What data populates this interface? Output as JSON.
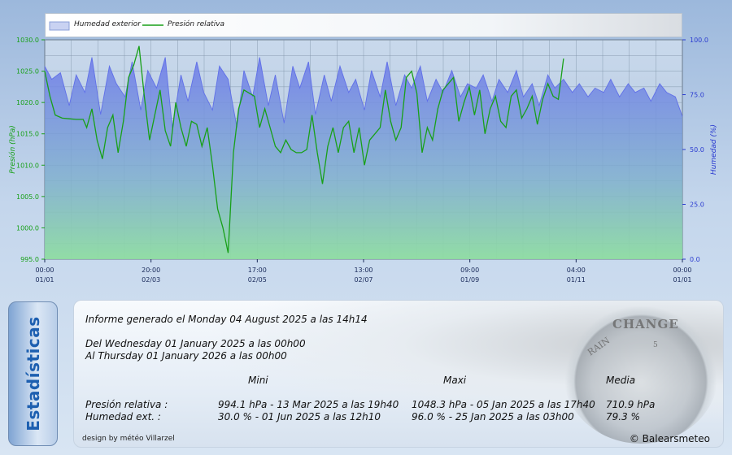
{
  "chart_data": {
    "type": "line",
    "x_ticks": [
      {
        "time": "00:00",
        "date": "01/01"
      },
      {
        "time": "20:00",
        "date": "02/03"
      },
      {
        "time": "17:00",
        "date": "02/05"
      },
      {
        "time": "13:00",
        "date": "02/07"
      },
      {
        "time": "09:00",
        "date": "01/09"
      },
      {
        "time": "04:00",
        "date": "01/11"
      },
      {
        "time": "00:00",
        "date": "01/01"
      }
    ],
    "y_left": {
      "label": "Presión (hPa)",
      "ticks": [
        "1030.0",
        "1025.0",
        "1020.0",
        "1015.0",
        "1010.0",
        "1005.0",
        "1000.0",
        "995.0"
      ],
      "range": [
        995,
        1030
      ]
    },
    "y_right": {
      "label": "Humedad (%)",
      "ticks": [
        "100.0",
        "75.0",
        "50.0",
        "25.0",
        "0.0"
      ],
      "range": [
        0,
        100
      ]
    },
    "x_range": [
      0,
      365
    ],
    "grid": true,
    "series": [
      {
        "name": "Humedad exterior",
        "axis": "right",
        "style": "area",
        "color": "#6070e8",
        "x": [
          0,
          4,
          9,
          14,
          18,
          23,
          27,
          32,
          37,
          41,
          46,
          50,
          55,
          59,
          64,
          69,
          73,
          78,
          82,
          87,
          91,
          96,
          100,
          105,
          110,
          114,
          119,
          123,
          128,
          132,
          137,
          142,
          146,
          151,
          155,
          160,
          164,
          169,
          174,
          178,
          183,
          187,
          192,
          196,
          201,
          206,
          210,
          215,
          219,
          224,
          228,
          233,
          238,
          242,
          247,
          251,
          256,
          260,
          265,
          270,
          274,
          279,
          283,
          288,
          292,
          297,
          302,
          306,
          311,
          315,
          320,
          324,
          329,
          334,
          338,
          343,
          347,
          352,
          356,
          361,
          365
        ],
        "values": [
          88,
          82,
          85,
          70,
          84,
          76,
          92,
          66,
          88,
          80,
          74,
          90,
          68,
          86,
          78,
          92,
          60,
          84,
          72,
          90,
          76,
          68,
          88,
          82,
          60,
          86,
          74,
          92,
          70,
          84,
          62,
          88,
          78,
          90,
          66,
          84,
          72,
          88,
          76,
          82,
          68,
          86,
          74,
          90,
          70,
          84,
          78,
          88,
          72,
          82,
          76,
          86,
          74,
          80,
          78,
          84,
          72,
          82,
          76,
          86,
          74,
          80,
          70,
          84,
          78,
          82,
          76,
          80,
          74,
          78,
          76,
          82,
          74,
          80,
          76,
          78,
          72,
          80,
          76,
          74,
          65
        ]
      },
      {
        "name": "Presión relativa",
        "axis": "left",
        "style": "line",
        "color": "#18a018",
        "x": [
          0,
          3,
          6,
          10,
          14,
          18,
          22,
          24,
          27,
          30,
          33,
          36,
          39,
          42,
          45,
          48,
          51,
          54,
          57,
          60,
          63,
          66,
          69,
          72,
          75,
          78,
          81,
          84,
          87,
          90,
          93,
          96,
          99,
          102,
          105,
          108,
          111,
          114,
          117,
          120,
          123,
          126,
          129,
          132,
          135,
          138,
          141,
          144,
          147,
          150,
          153,
          156,
          159,
          162,
          165,
          168,
          171,
          174,
          177,
          180,
          183,
          186,
          189,
          192,
          195,
          198,
          201,
          204,
          207,
          210,
          213,
          216,
          219,
          222,
          225,
          228,
          231,
          234,
          237,
          240,
          243,
          246,
          249,
          252,
          255,
          258,
          261,
          264,
          267,
          270,
          273,
          276,
          279,
          282,
          285,
          288,
          291,
          294,
          297
        ],
        "values": [
          1025.0,
          1021.0,
          1018.0,
          1017.5,
          1017.4,
          1017.3,
          1017.3,
          1016.0,
          1019.0,
          1014.0,
          1011.0,
          1016.0,
          1018.0,
          1012.0,
          1017.0,
          1024.0,
          1026.0,
          1029.0,
          1021.0,
          1014.0,
          1018.0,
          1022.0,
          1015.5,
          1013.0,
          1020.0,
          1016.0,
          1013.0,
          1017.0,
          1016.5,
          1013.0,
          1016.0,
          1010.0,
          1003.0,
          1000.0,
          996.0,
          1012.0,
          1019.0,
          1022.0,
          1021.5,
          1021.0,
          1016.0,
          1019.0,
          1016.0,
          1013.0,
          1012.0,
          1014.0,
          1012.5,
          1012.0,
          1012.0,
          1012.5,
          1018.0,
          1012.0,
          1007.0,
          1013.0,
          1016.0,
          1012.0,
          1016.0,
          1017.0,
          1012.0,
          1016.0,
          1010.0,
          1014.0,
          1015.0,
          1016.0,
          1022.0,
          1017.0,
          1014.0,
          1016.0,
          1024.0,
          1025.0,
          1021.5,
          1012.0,
          1016.0,
          1014.0,
          1019.0,
          1022.0,
          1023.0,
          1024.0,
          1017.0,
          1020.0,
          1022.5,
          1018.0,
          1022.0,
          1015.0,
          1019.0,
          1021.0,
          1017.0,
          1016.0,
          1021.0,
          1022.0,
          1017.5,
          1019.0,
          1021.0,
          1016.5,
          1020.5,
          1023.0,
          1021.0,
          1020.5,
          1027.0
        ]
      }
    ]
  },
  "legend": {
    "humidity": "Humedad exterior",
    "pressure": "Presión relativa"
  },
  "stats": {
    "tab_label": "Estadísticas",
    "report": "Informe generado el Monday 04 August 2025 a las 14h14",
    "from": "Del Wednesday 01 January 2025 a las 00h00",
    "to": "Al Thursday 01 January 2026 a las 00h00",
    "col_min": "Mini",
    "col_max": "Maxi",
    "col_avg": "Media",
    "rows": [
      {
        "label": "Presión relativa :",
        "min": "994.1 hPa - 13 Mar 2025 a las 19h40",
        "max": "1048.3 hPa - 05 Jan 2025 a las 17h40",
        "avg": "710.9 hPa"
      },
      {
        "label": "Humedad ext. :",
        "min": "30.0 % - 01 Jun 2025 a las 12h10",
        "max": "96.0 % - 25 Jan 2025 a las 03h00",
        "avg": "79.3 %"
      }
    ],
    "design_credit": "design by météo Villarzel",
    "copyright": "© Balearsmeteo",
    "gauge_words": {
      "change": "CHANGE",
      "rain": "RAIN",
      "num": "5"
    }
  },
  "colors": {
    "pressure": "#18a018",
    "humidity": "#6070e8",
    "axis_left": "#18a018",
    "axis_right": "#2a3ad0"
  }
}
